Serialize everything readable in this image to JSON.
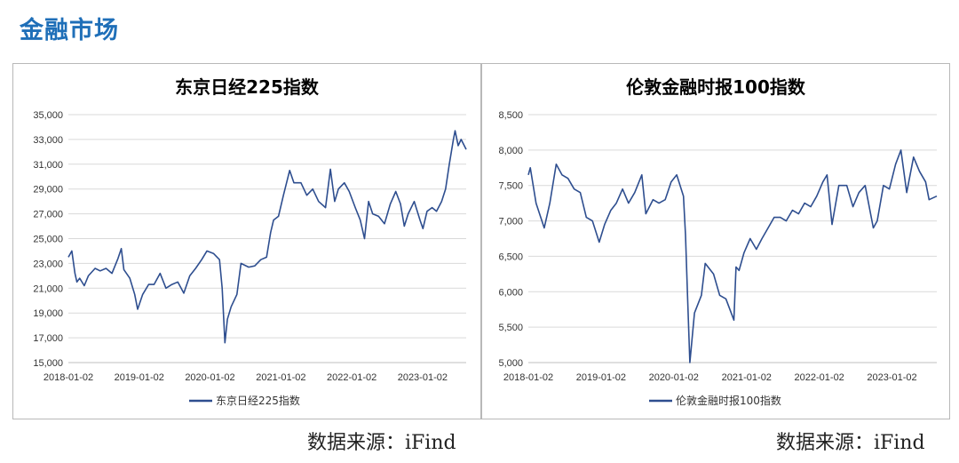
{
  "header": {
    "title": "金融市场"
  },
  "source_left": "数据来源：iFind",
  "source_right": "数据来源：iFind",
  "colors": {
    "series": "#2e4e8f",
    "header": "#1f6fb8"
  },
  "chart_data": [
    {
      "type": "line",
      "title": "东京日经225指数",
      "legend": "东京日经225指数",
      "ylim": [
        15000,
        35000
      ],
      "yticks": [
        "15,000",
        "17,000",
        "19,000",
        "21,000",
        "23,000",
        "25,000",
        "27,000",
        "29,000",
        "31,000",
        "33,000",
        "35,000"
      ],
      "xlim": [
        "2018-01-02",
        "2023-08-15"
      ],
      "xticks": [
        "2018-01-02",
        "2019-01-02",
        "2020-01-02",
        "2021-01-02",
        "2022-01-02",
        "2023-01-02"
      ],
      "grid": true,
      "legend_position": "bottom",
      "series": [
        {
          "name": "东京日经225指数",
          "x": [
            "2018-01-02",
            "2018-01-20",
            "2018-02-05",
            "2018-02-15",
            "2018-03-01",
            "2018-03-25",
            "2018-04-15",
            "2018-05-20",
            "2018-06-15",
            "2018-07-15",
            "2018-08-15",
            "2018-09-15",
            "2018-10-02",
            "2018-10-15",
            "2018-11-15",
            "2018-12-10",
            "2018-12-25",
            "2019-01-20",
            "2019-02-20",
            "2019-03-20",
            "2019-04-20",
            "2019-05-20",
            "2019-06-20",
            "2019-07-20",
            "2019-08-20",
            "2019-09-20",
            "2019-10-20",
            "2019-11-20",
            "2019-12-17",
            "2020-01-20",
            "2020-02-20",
            "2020-03-05",
            "2020-03-19",
            "2020-04-01",
            "2020-04-20",
            "2020-05-20",
            "2020-06-10",
            "2020-07-20",
            "2020-08-20",
            "2020-09-20",
            "2020-10-20",
            "2020-11-10",
            "2020-11-25",
            "2020-12-20",
            "2021-01-15",
            "2021-02-16",
            "2021-03-10",
            "2021-04-15",
            "2021-05-15",
            "2021-06-15",
            "2021-07-15",
            "2021-08-20",
            "2021-09-14",
            "2021-10-06",
            "2021-10-25",
            "2021-11-25",
            "2021-12-20",
            "2022-01-20",
            "2022-02-15",
            "2022-03-09",
            "2022-03-30",
            "2022-04-20",
            "2022-05-20",
            "2022-06-20",
            "2022-07-20",
            "2022-08-17",
            "2022-09-10",
            "2022-09-30",
            "2022-10-20",
            "2022-11-20",
            "2022-12-20",
            "2023-01-04",
            "2023-01-25",
            "2023-02-20",
            "2023-03-15",
            "2023-04-10",
            "2023-05-01",
            "2023-05-20",
            "2023-06-10",
            "2023-06-19",
            "2023-07-05",
            "2023-07-20",
            "2023-08-15"
          ],
          "values": [
            23500,
            24000,
            22200,
            21500,
            21800,
            21200,
            22000,
            22600,
            22400,
            22600,
            22200,
            23400,
            24200,
            22500,
            21800,
            20500,
            19300,
            20500,
            21300,
            21300,
            22200,
            21000,
            21300,
            21500,
            20600,
            22000,
            22600,
            23300,
            24000,
            23800,
            23300,
            21000,
            16600,
            18500,
            19500,
            20500,
            23000,
            22700,
            22800,
            23300,
            23500,
            25500,
            26500,
            26800,
            28500,
            30500,
            29500,
            29500,
            28500,
            29000,
            28000,
            27500,
            30600,
            28000,
            29000,
            29500,
            28800,
            27500,
            26500,
            25000,
            28000,
            27000,
            26800,
            26200,
            27800,
            28800,
            27800,
            26000,
            27000,
            28000,
            26500,
            25800,
            27200,
            27500,
            27200,
            28000,
            29000,
            31000,
            33000,
            33700,
            32500,
            33000,
            32200
          ]
        }
      ]
    },
    {
      "type": "line",
      "title": "伦敦金融时报100指数",
      "legend": "伦敦金融时报100指数",
      "ylim": [
        5000,
        8500
      ],
      "yticks": [
        "5,000",
        "5,500",
        "6,000",
        "6,500",
        "7,000",
        "7,500",
        "8,000",
        "8,500"
      ],
      "xlim": [
        "2018-01-02",
        "2023-08-15"
      ],
      "xticks": [
        "2018-01-02",
        "2019-01-02",
        "2020-01-02",
        "2021-01-02",
        "2022-01-02",
        "2023-01-02"
      ],
      "grid": true,
      "legend_position": "bottom",
      "series": [
        {
          "name": "伦敦金融时报100指数",
          "x": [
            "2018-01-02",
            "2018-01-12",
            "2018-02-10",
            "2018-03-23",
            "2018-04-20",
            "2018-05-22",
            "2018-06-20",
            "2018-07-20",
            "2018-08-20",
            "2018-09-20",
            "2018-10-20",
            "2018-11-20",
            "2018-12-24",
            "2019-01-20",
            "2019-02-20",
            "2019-03-20",
            "2019-04-20",
            "2019-05-20",
            "2019-06-20",
            "2019-07-26",
            "2019-08-15",
            "2019-09-20",
            "2019-10-20",
            "2019-11-20",
            "2019-12-20",
            "2020-01-17",
            "2020-02-20",
            "2020-03-01",
            "2020-03-12",
            "2020-03-23",
            "2020-04-15",
            "2020-05-20",
            "2020-06-08",
            "2020-07-20",
            "2020-08-20",
            "2020-09-20",
            "2020-10-30",
            "2020-11-10",
            "2020-11-25",
            "2020-12-20",
            "2021-01-20",
            "2021-02-20",
            "2021-03-20",
            "2021-04-20",
            "2021-05-20",
            "2021-06-20",
            "2021-07-20",
            "2021-08-20",
            "2021-09-20",
            "2021-10-20",
            "2021-11-20",
            "2021-12-20",
            "2022-01-20",
            "2022-02-10",
            "2022-03-07",
            "2022-04-10",
            "2022-05-20",
            "2022-06-20",
            "2022-07-20",
            "2022-08-20",
            "2022-09-30",
            "2022-10-20",
            "2022-11-20",
            "2022-12-20",
            "2023-01-20",
            "2023-02-16",
            "2023-03-17",
            "2023-04-20",
            "2023-05-20",
            "2023-06-20",
            "2023-07-07",
            "2023-08-15"
          ],
          "values": [
            7650,
            7750,
            7250,
            6900,
            7250,
            7800,
            7650,
            7600,
            7450,
            7400,
            7050,
            7000,
            6700,
            6950,
            7150,
            7250,
            7450,
            7250,
            7400,
            7650,
            7100,
            7300,
            7250,
            7300,
            7550,
            7650,
            7350,
            6800,
            5900,
            5000,
            5700,
            5950,
            6400,
            6250,
            5950,
            5900,
            5600,
            6350,
            6300,
            6550,
            6750,
            6600,
            6750,
            6900,
            7050,
            7050,
            7000,
            7150,
            7100,
            7250,
            7200,
            7350,
            7550,
            7650,
            6950,
            7500,
            7500,
            7200,
            7400,
            7500,
            6900,
            7000,
            7500,
            7450,
            7800,
            8000,
            7400,
            7900,
            7700,
            7550,
            7300,
            7350
          ]
        }
      ]
    }
  ]
}
